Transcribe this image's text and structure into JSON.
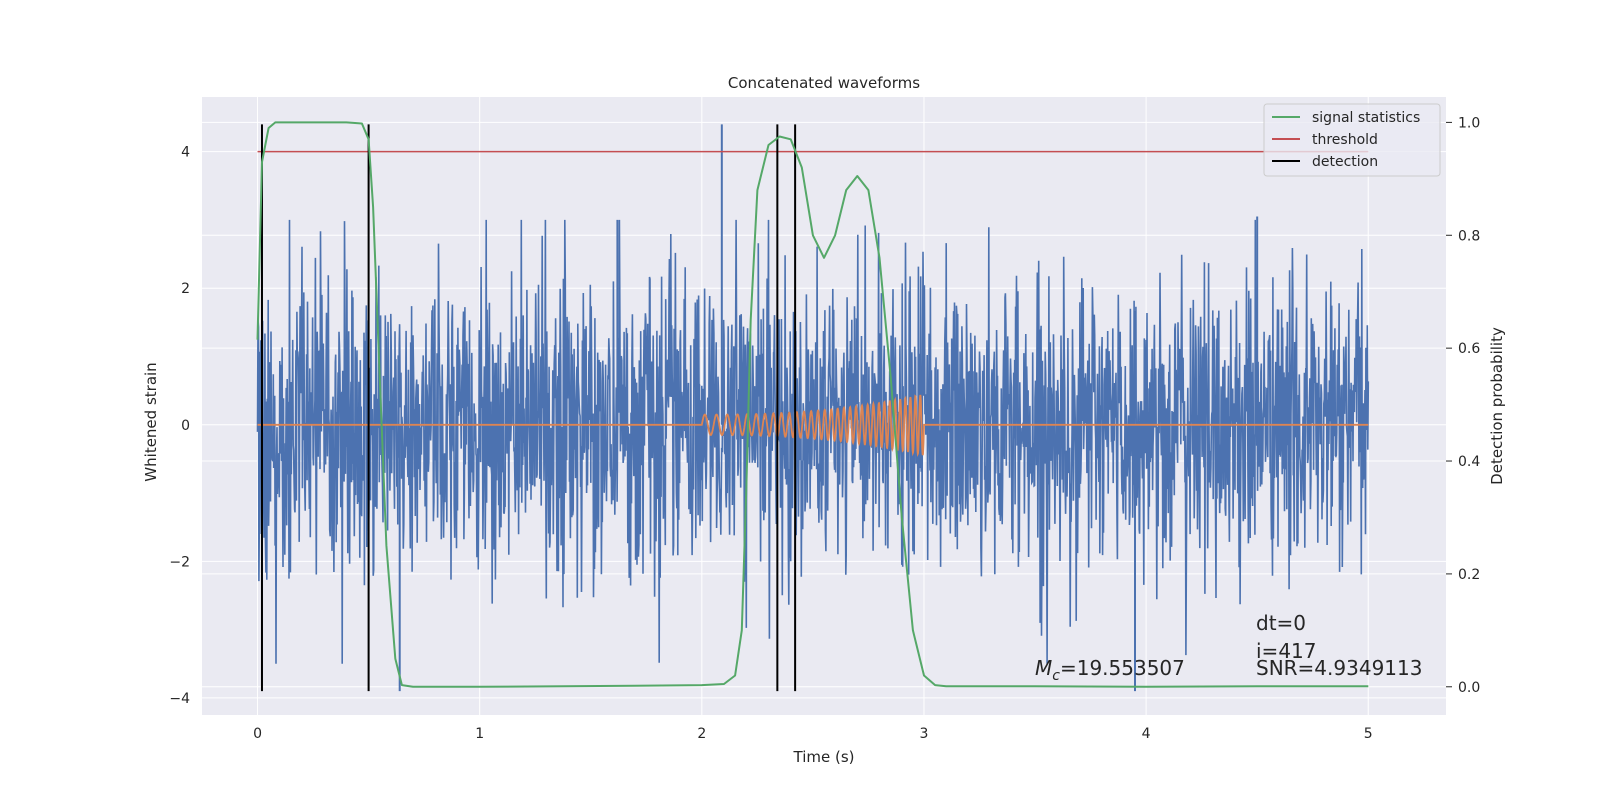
{
  "chart_data": {
    "type": "line",
    "title": "Concatenated waveforms",
    "xlabel": "Time (s)",
    "ylabel": "Whitened strain",
    "y2label": "Detection probability",
    "xlim": [
      -0.25,
      5.35
    ],
    "ylim": [
      -4.25,
      4.8
    ],
    "y2lim": [
      -0.05,
      1.045
    ],
    "xticks": [
      0,
      1,
      2,
      3,
      4,
      5
    ],
    "xtick_labels": [
      "0",
      "1",
      "2",
      "3",
      "4",
      "5"
    ],
    "yticks": [
      -4,
      -2,
      0,
      2,
      4
    ],
    "ytick_labels": [
      "−4",
      "−2",
      "0",
      "2",
      "4"
    ],
    "y2ticks": [
      0.0,
      0.2,
      0.4,
      0.6,
      0.8,
      1.0
    ],
    "y2tick_labels": [
      "0.0",
      "0.2",
      "0.4",
      "0.6",
      "0.8",
      "1.0"
    ],
    "grid": true,
    "legend_placement": "top-right",
    "legend": [
      {
        "label": "signal statistics",
        "color": "#55a868"
      },
      {
        "label": "threshold",
        "color": "#c44e52"
      },
      {
        "label": "detection",
        "color": "#000000"
      }
    ],
    "series": [
      {
        "role": "noise",
        "color": "#4c72b0",
        "x_range": [
          0,
          5
        ],
        "typical_amplitude": 1.1,
        "max_spike": 4.4,
        "min_spike": -3.9
      },
      {
        "role": "chirp",
        "color": "#dd8452",
        "x_range": [
          2,
          3
        ],
        "amplitude_range": [
          0.15,
          0.45
        ]
      },
      {
        "name": "signal statistics",
        "axis": "right",
        "color": "#55a868",
        "x": [
          0,
          0.02,
          0.05,
          0.08,
          0.12,
          0.2,
          0.3,
          0.4,
          0.47,
          0.5,
          0.52,
          0.55,
          0.58,
          0.62,
          0.65,
          0.7,
          1.0,
          1.7,
          2.0,
          2.1,
          2.15,
          2.18,
          2.2,
          2.22,
          2.25,
          2.3,
          2.35,
          2.4,
          2.45,
          2.5,
          2.55,
          2.6,
          2.65,
          2.7,
          2.75,
          2.8,
          2.85,
          2.9,
          2.95,
          3.0,
          3.05,
          3.1,
          3.5,
          4.0,
          4.5,
          5.0
        ],
        "y": [
          0.615,
          0.93,
          0.99,
          1.0,
          1.0,
          1.0,
          1.0,
          1.0,
          0.998,
          0.97,
          0.85,
          0.55,
          0.25,
          0.05,
          0.003,
          0.0,
          0.0,
          0.002,
          0.003,
          0.005,
          0.02,
          0.1,
          0.35,
          0.65,
          0.88,
          0.96,
          0.975,
          0.97,
          0.92,
          0.8,
          0.76,
          0.8,
          0.88,
          0.905,
          0.88,
          0.76,
          0.55,
          0.3,
          0.1,
          0.02,
          0.003,
          0.001,
          0.001,
          0.0,
          0.001,
          0.001
        ]
      },
      {
        "name": "threshold",
        "axis": "left",
        "color": "#c44e52",
        "x": [
          0,
          5
        ],
        "y": [
          4,
          4
        ]
      }
    ],
    "detections": [
      0.02,
      0.5,
      2.34,
      2.42
    ],
    "detection_y_range": [
      -3.9,
      4.4
    ],
    "annotations": {
      "dt": "dt=0",
      "i": "i=417",
      "snr": "SNR=4.9349113",
      "mc_prefix": "M",
      "mc_sub": "c",
      "mc_value": "=19.553507"
    }
  }
}
